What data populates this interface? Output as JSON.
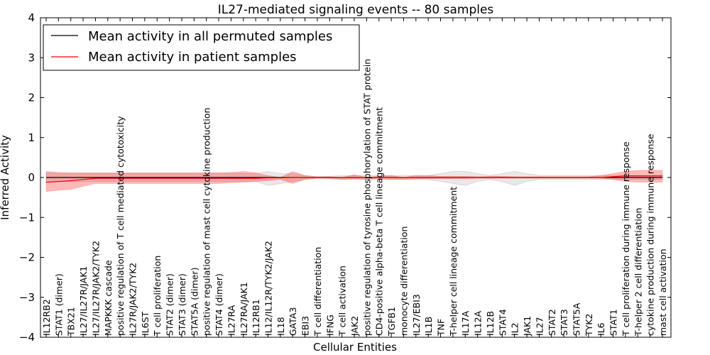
{
  "chart_data": {
    "type": "line",
    "title": "IL27-mediated signaling events -- 80 samples",
    "xlabel": "Cellular Entities",
    "ylabel": "Inferred Activity",
    "ylim": [
      -4,
      4
    ],
    "yticks": [
      -4,
      -3,
      -2,
      -1,
      0,
      1,
      2,
      3,
      4
    ],
    "yticklabels": [
      "−4",
      "−3",
      "−2",
      "−1",
      "0",
      "1",
      "2",
      "3",
      "4"
    ],
    "legend_position": "upper-left",
    "categories": [
      "IL12RB2",
      "STAT1 (dimer)",
      "TBX21",
      "IL27/IL27R/JAK1",
      "IL27/IL27R/JAK2/TYK2",
      "MAPKKK cascade",
      "positive regulation of T cell mediated cytotoxicity",
      "IL27R/JAK2/TYK2",
      "IL6ST",
      "T cell proliferation",
      "STAT2 (dimer)",
      "STAT3 (dimer)",
      "STAT5A (dimer)",
      "positive regulation of mast cell cytokine production",
      "STAT4 (dimer)",
      "IL27RA",
      "IL27RA/JAK1",
      "IL12RB1",
      "IL12/IL12R/TYK2/JAK2",
      "IL18",
      "GATA3",
      "EBI3",
      "T cell differentiation",
      "IFNG",
      "T cell activation",
      "JAK2",
      "positive regulation of tyrosine phosphorylation of STAT protein",
      "CD4-positive alpha-beta T cell lineage commitment",
      "TGFB1",
      "monocyte differentiation",
      "IL27/EBI3",
      "IL1B",
      "TNF",
      "T-helper cell lineage commitment",
      "IL17A",
      "IL12A",
      "IL12B",
      "STAT4",
      "IL2",
      "JAK1",
      "IL27",
      "STAT2",
      "STAT3",
      "STAT5A",
      "TYK2",
      "IL6",
      "STAT1",
      "T cell proliferation during immune response",
      "T-helper 2 cell differentiation",
      "cytokine production during immune response",
      "mast cell activation"
    ],
    "series": [
      {
        "name": "Mean activity in all permuted samples",
        "color": "#000000",
        "values": [
          0.0,
          0.0,
          0.0,
          0.0,
          0.0,
          0.0,
          0.0,
          0.0,
          0.0,
          0.0,
          0.0,
          0.0,
          0.0,
          0.0,
          0.0,
          0.0,
          0.0,
          0.0,
          0.0,
          0.0,
          0.0,
          0.0,
          0.0,
          0.0,
          0.0,
          0.0,
          0.0,
          0.0,
          0.0,
          0.0,
          0.0,
          0.0,
          0.0,
          0.0,
          0.0,
          0.0,
          0.0,
          0.0,
          0.0,
          0.0,
          0.0,
          0.0,
          0.0,
          0.0,
          0.0,
          0.0,
          0.0,
          0.0,
          0.0,
          0.0,
          0.0
        ],
        "band_upper": [
          0.12,
          0.1,
          0.1,
          0.1,
          0.1,
          0.1,
          0.1,
          0.1,
          0.1,
          0.1,
          0.1,
          0.1,
          0.1,
          0.1,
          0.1,
          0.1,
          0.1,
          0.1,
          0.15,
          0.1,
          0.1,
          0.05,
          0.02,
          0.03,
          0.05,
          0.05,
          0.05,
          0.05,
          0.05,
          0.05,
          0.05,
          0.05,
          0.1,
          0.15,
          0.15,
          0.1,
          0.05,
          0.1,
          0.15,
          0.1,
          0.05,
          0.05,
          0.05,
          0.05,
          0.05,
          0.05,
          0.05,
          0.05,
          0.05,
          0.05,
          0.05
        ],
        "band_lower": [
          -0.12,
          -0.1,
          -0.1,
          -0.1,
          -0.1,
          -0.1,
          -0.1,
          -0.1,
          -0.1,
          -0.1,
          -0.1,
          -0.1,
          -0.1,
          -0.1,
          -0.1,
          -0.1,
          -0.1,
          -0.1,
          -0.2,
          -0.15,
          -0.1,
          -0.05,
          -0.02,
          -0.03,
          -0.05,
          -0.05,
          -0.05,
          -0.05,
          -0.05,
          -0.05,
          -0.05,
          -0.05,
          -0.1,
          -0.15,
          -0.2,
          -0.1,
          -0.05,
          -0.1,
          -0.2,
          -0.1,
          -0.05,
          -0.05,
          -0.05,
          -0.05,
          -0.05,
          -0.05,
          -0.05,
          -0.05,
          -0.05,
          -0.05,
          -0.05
        ]
      },
      {
        "name": "Mean activity in patient samples",
        "color": "#ff0000",
        "values": [
          -0.12,
          -0.1,
          -0.08,
          -0.05,
          -0.02,
          -0.02,
          -0.02,
          -0.02,
          -0.02,
          -0.02,
          -0.02,
          -0.02,
          -0.02,
          -0.02,
          -0.02,
          -0.02,
          -0.02,
          -0.02,
          -0.01,
          -0.01,
          0.0,
          0.0,
          0.0,
          0.0,
          0.0,
          0.0,
          0.0,
          0.0,
          0.0,
          0.0,
          0.0,
          0.0,
          0.0,
          0.0,
          0.0,
          0.0,
          0.0,
          0.0,
          0.0,
          0.0,
          0.0,
          0.0,
          0.0,
          0.0,
          0.0,
          0.0,
          0.02,
          0.04,
          0.04,
          0.04,
          0.04
        ],
        "band_upper": [
          0.15,
          0.13,
          0.12,
          0.12,
          0.12,
          0.12,
          0.12,
          0.12,
          0.12,
          0.12,
          0.12,
          0.12,
          0.12,
          0.12,
          0.12,
          0.13,
          0.15,
          0.12,
          0.05,
          0.0,
          0.15,
          0.05,
          0.02,
          0.02,
          0.0,
          0.07,
          0.0,
          0.03,
          0.05,
          0.0,
          0.05,
          0.05,
          0.03,
          0.03,
          0.03,
          0.02,
          0.03,
          0.03,
          0.02,
          0.02,
          0.02,
          0.02,
          0.02,
          0.02,
          0.02,
          0.05,
          0.1,
          0.15,
          0.18,
          0.18,
          0.18
        ],
        "band_lower": [
          -0.35,
          -0.32,
          -0.3,
          -0.22,
          -0.15,
          -0.15,
          -0.15,
          -0.15,
          -0.15,
          -0.15,
          -0.15,
          -0.15,
          -0.15,
          -0.15,
          -0.15,
          -0.13,
          -0.12,
          -0.1,
          -0.08,
          -0.05,
          -0.15,
          -0.05,
          -0.02,
          -0.02,
          -0.05,
          -0.03,
          -0.05,
          -0.02,
          -0.05,
          -0.05,
          -0.03,
          -0.03,
          -0.03,
          -0.03,
          -0.03,
          -0.02,
          -0.02,
          -0.02,
          -0.02,
          -0.02,
          -0.02,
          -0.02,
          -0.02,
          -0.02,
          -0.02,
          -0.02,
          -0.05,
          -0.1,
          -0.12,
          -0.12,
          -0.12
        ]
      }
    ]
  }
}
